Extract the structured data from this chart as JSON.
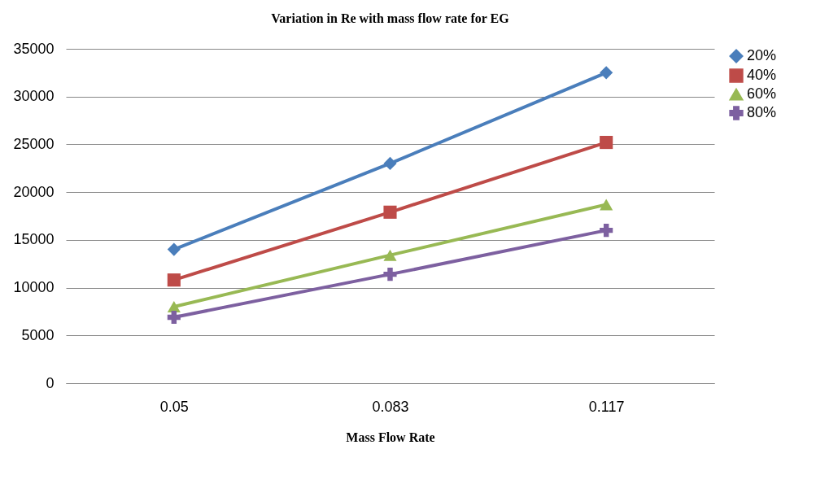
{
  "chart_data": {
    "type": "line",
    "title": "Variation in Re with mass flow rate for EG",
    "xlabel": "Mass Flow Rate",
    "categories": [
      "0.05",
      "0.083",
      "0.117"
    ],
    "series": [
      {
        "name": "20%",
        "color": "#4a7ebb",
        "marker": "diamond",
        "values": [
          14000,
          23000,
          32500
        ]
      },
      {
        "name": "40%",
        "color": "#be4b48",
        "marker": "square",
        "values": [
          10800,
          17900,
          25200
        ]
      },
      {
        "name": "60%",
        "color": "#98b954",
        "marker": "triangle",
        "values": [
          8000,
          13400,
          18700
        ]
      },
      {
        "name": "80%",
        "color": "#7d60a0",
        "marker": "cross",
        "values": [
          6900,
          11400,
          16000
        ]
      }
    ],
    "ylim": [
      0,
      35000
    ],
    "yticks": [
      0,
      5000,
      10000,
      15000,
      20000,
      25000,
      30000,
      35000
    ],
    "grid": "y",
    "legend": "right",
    "line_style": "solid"
  }
}
